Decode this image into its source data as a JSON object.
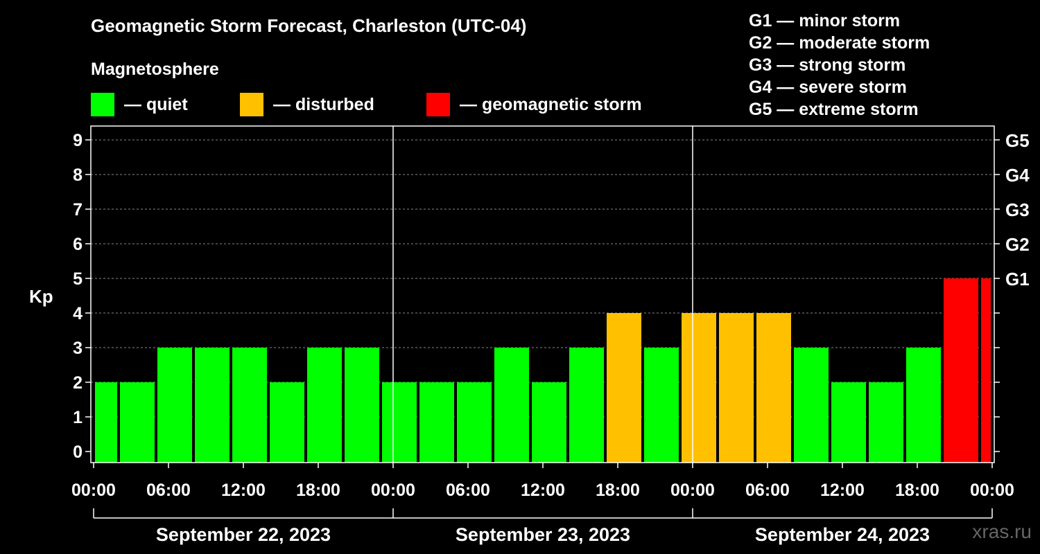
{
  "chart_data": {
    "type": "bar",
    "title": "Geomagnetic Storm Forecast, Charleston (UTC-04)",
    "ylabel": "Kp",
    "ylim": [
      0,
      9
    ],
    "yticks": [
      "0",
      "1",
      "2",
      "3",
      "4",
      "5",
      "6",
      "7",
      "8",
      "9"
    ],
    "right_axis_labels": [
      {
        "kp": 5,
        "label": "G1"
      },
      {
        "kp": 6,
        "label": "G2"
      },
      {
        "kp": 7,
        "label": "G3"
      },
      {
        "kp": 8,
        "label": "G4"
      },
      {
        "kp": 9,
        "label": "G5"
      }
    ],
    "xlim_hours": [
      0,
      72
    ],
    "x_tick_labels": [
      {
        "hour": 0,
        "label": "00:00"
      },
      {
        "hour": 6,
        "label": "06:00"
      },
      {
        "hour": 12,
        "label": "12:00"
      },
      {
        "hour": 18,
        "label": "18:00"
      },
      {
        "hour": 24,
        "label": "00:00"
      },
      {
        "hour": 30,
        "label": "06:00"
      },
      {
        "hour": 36,
        "label": "12:00"
      },
      {
        "hour": 42,
        "label": "18:00"
      },
      {
        "hour": 48,
        "label": "00:00"
      },
      {
        "hour": 54,
        "label": "06:00"
      },
      {
        "hour": 60,
        "label": "12:00"
      },
      {
        "hour": 66,
        "label": "18:00"
      },
      {
        "hour": 72,
        "label": "00:00"
      }
    ],
    "dates": [
      {
        "start": 0,
        "end": 24,
        "label": "September 22, 2023"
      },
      {
        "start": 24,
        "end": 48,
        "label": "September 23, 2023"
      },
      {
        "start": 48,
        "end": 72,
        "label": "September 24, 2023"
      }
    ],
    "bars": [
      {
        "start": 0,
        "end": 2,
        "kp": 2
      },
      {
        "start": 2,
        "end": 5,
        "kp": 2
      },
      {
        "start": 5,
        "end": 8,
        "kp": 3
      },
      {
        "start": 8,
        "end": 11,
        "kp": 3
      },
      {
        "start": 11,
        "end": 14,
        "kp": 3
      },
      {
        "start": 14,
        "end": 17,
        "kp": 2
      },
      {
        "start": 17,
        "end": 20,
        "kp": 3
      },
      {
        "start": 20,
        "end": 23,
        "kp": 3
      },
      {
        "start": 23,
        "end": 26,
        "kp": 2
      },
      {
        "start": 26,
        "end": 29,
        "kp": 2
      },
      {
        "start": 29,
        "end": 32,
        "kp": 2
      },
      {
        "start": 32,
        "end": 35,
        "kp": 3
      },
      {
        "start": 35,
        "end": 38,
        "kp": 2
      },
      {
        "start": 38,
        "end": 41,
        "kp": 3
      },
      {
        "start": 41,
        "end": 44,
        "kp": 4
      },
      {
        "start": 44,
        "end": 47,
        "kp": 3
      },
      {
        "start": 47,
        "end": 50,
        "kp": 4
      },
      {
        "start": 50,
        "end": 53,
        "kp": 4
      },
      {
        "start": 53,
        "end": 56,
        "kp": 4
      },
      {
        "start": 56,
        "end": 59,
        "kp": 3
      },
      {
        "start": 59,
        "end": 62,
        "kp": 2
      },
      {
        "start": 62,
        "end": 65,
        "kp": 2
      },
      {
        "start": 65,
        "end": 68,
        "kp": 3
      },
      {
        "start": 68,
        "end": 71,
        "kp": 5
      },
      {
        "start": 71,
        "end": 72,
        "kp": 5
      }
    ],
    "grid": "horizontal dashed"
  },
  "legend": {
    "title": "Magnetosphere",
    "items": [
      {
        "label": "— quiet",
        "color": "#00ff00"
      },
      {
        "label": "— disturbed",
        "color": "#ffc000"
      },
      {
        "label": "— geomagnetic storm",
        "color": "#ff0000"
      }
    ]
  },
  "g_scale": [
    "G1 — minor storm",
    "G2 — moderate storm",
    "G3 — strong storm",
    "G4 — severe storm",
    "G5 — extreme storm"
  ],
  "watermark": "xras.ru"
}
